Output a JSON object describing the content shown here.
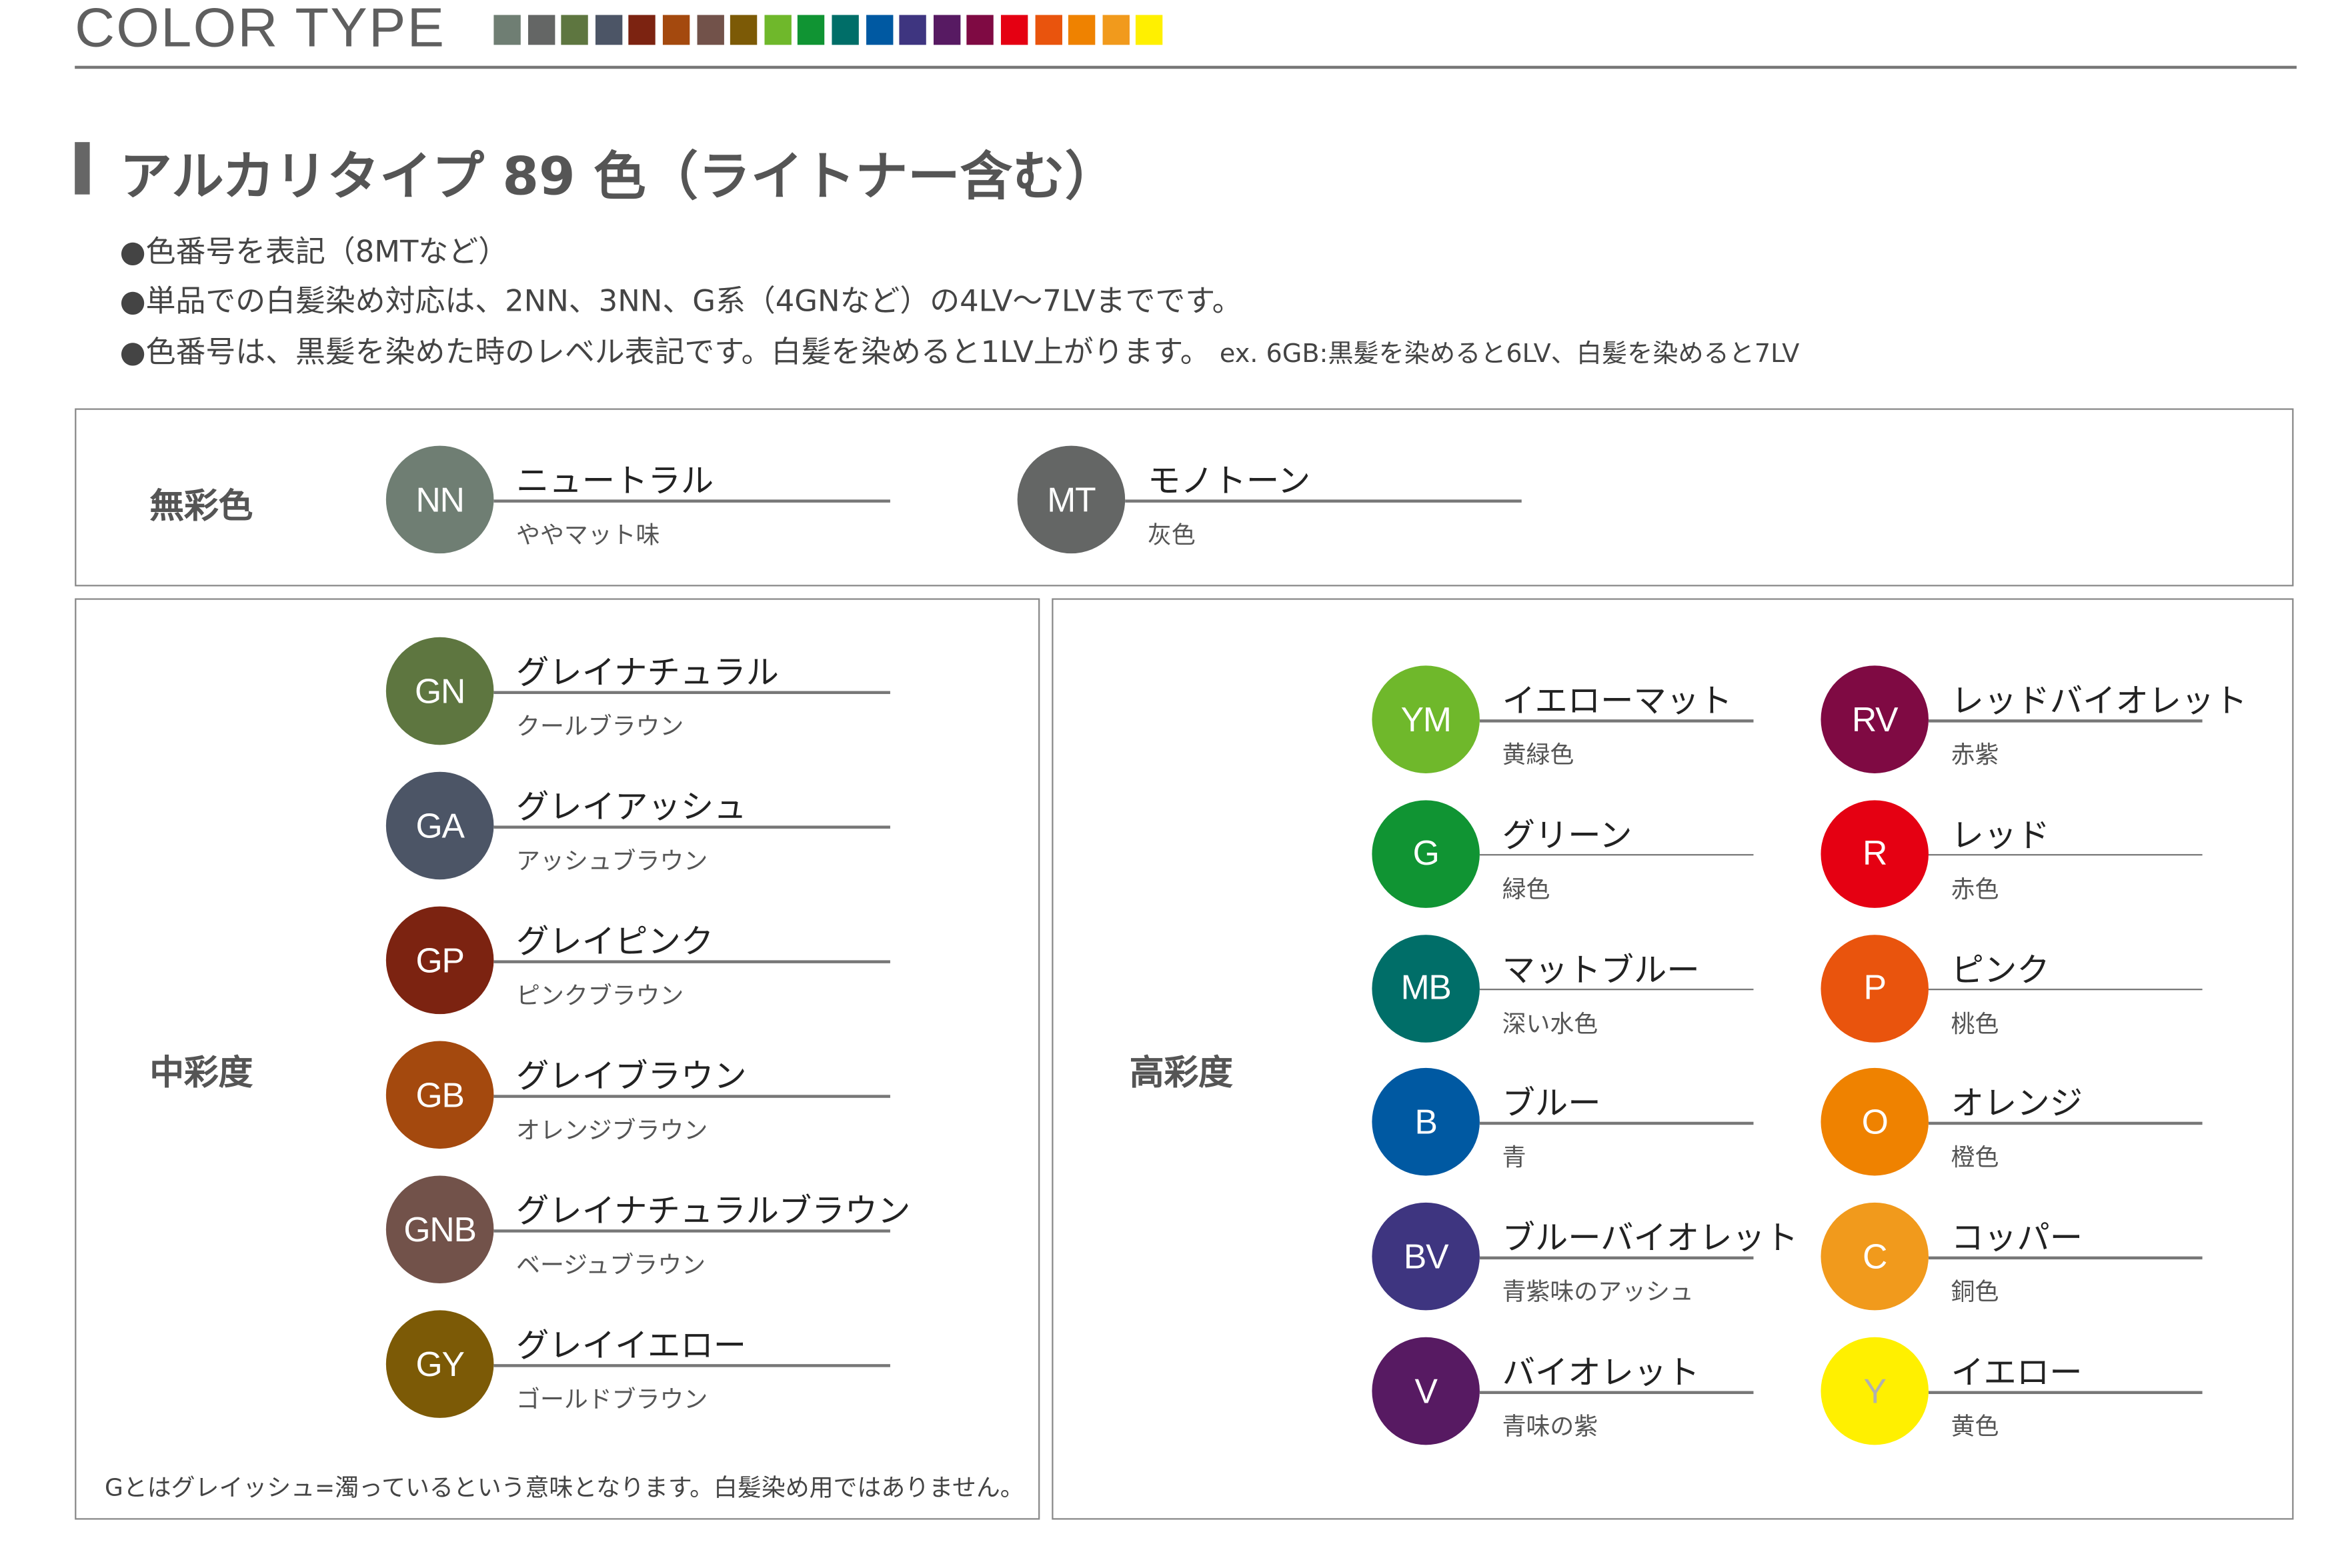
{
  "header": {
    "title": "COLOR TYPE",
    "swatches": [
      "#6f7e73",
      "#646665",
      "#5e7640",
      "#4c5566",
      "#7c2311",
      "#a4490e",
      "#72524a",
      "#7c5a06",
      "#6fb82b",
      "#109433",
      "#006e68",
      "#0059a2",
      "#3e3580",
      "#571a62",
      "#7f0a43",
      "#e50012",
      "#e9540d",
      "#ef8200",
      "#f19a1c",
      "#fff000"
    ]
  },
  "section": {
    "heading": "アルカリタイプ 89 色（ライトナー含む）",
    "bullets": [
      "●色番号を表記（8MTなど）",
      "●単品での白髪染め対応は、2NN、3NN、G系（4GNなど）の4LV〜7LVまでです。",
      "●色番号は、黒髪を染めた時のレベル表記です。白髪を染めると1LV上がります。"
    ],
    "bullet_example": "ex. 6GB:黒髪を染めると6LV、白髪を染めると7LV"
  },
  "groups": {
    "achromatic": {
      "label": "無彩色",
      "items": [
        {
          "code": "NN",
          "name": "ニュートラル",
          "desc": "ややマット味",
          "color": "#6f7e73"
        },
        {
          "code": "MT",
          "name": "モノトーン",
          "desc": "灰色",
          "color": "#646665"
        }
      ]
    },
    "medium": {
      "label": "中彩度",
      "items": [
        {
          "code": "GN",
          "name": "グレイナチュラル",
          "desc": "クールブラウン",
          "color": "#5e7640"
        },
        {
          "code": "GA",
          "name": "グレイアッシュ",
          "desc": "アッシュブラウン",
          "color": "#4c5566"
        },
        {
          "code": "GP",
          "name": "グレイピンク",
          "desc": "ピンクブラウン",
          "color": "#7c2311"
        },
        {
          "code": "GB",
          "name": "グレイブラウン",
          "desc": "オレンジブラウン",
          "color": "#a4490e"
        },
        {
          "code": "GNB",
          "name": "グレイナチュラルブラウン",
          "desc": "ベージュブラウン",
          "color": "#72524a"
        },
        {
          "code": "GY",
          "name": "グレイイエロー",
          "desc": "ゴールドブラウン",
          "color": "#7c5a06"
        }
      ],
      "note": "Gとはグレイッシュ=濁っているという意味となります。白髪染め用ではありません。"
    },
    "high": {
      "label": "高彩度",
      "items": [
        {
          "code": "YM",
          "name": "イエローマット",
          "desc": "黄緑色",
          "color": "#6fb82b"
        },
        {
          "code": "G",
          "name": "グリーン",
          "desc": "緑色",
          "color": "#109433"
        },
        {
          "code": "MB",
          "name": "マットブルー",
          "desc": "深い水色",
          "color": "#006e68"
        },
        {
          "code": "B",
          "name": "ブルー",
          "desc": "青",
          "color": "#0059a2"
        },
        {
          "code": "BV",
          "name": "ブルーバイオレット",
          "desc": "青紫味のアッシュ",
          "color": "#3e3580"
        },
        {
          "code": "V",
          "name": "バイオレット",
          "desc": "青味の紫",
          "color": "#571a62"
        },
        {
          "code": "RV",
          "name": "レッドバイオレット",
          "desc": "赤紫",
          "color": "#7f0a43"
        },
        {
          "code": "R",
          "name": "レッド",
          "desc": "赤色",
          "color": "#e50012"
        },
        {
          "code": "P",
          "name": "ピンク",
          "desc": "桃色",
          "color": "#e9540d"
        },
        {
          "code": "O",
          "name": "オレンジ",
          "desc": "橙色",
          "color": "#ef8200"
        },
        {
          "code": "C",
          "name": "コッパー",
          "desc": "銅色",
          "color": "#f19a1c"
        },
        {
          "code": "Y",
          "name": "イエロー",
          "desc": "黄色",
          "color": "#fff000"
        }
      ]
    }
  }
}
